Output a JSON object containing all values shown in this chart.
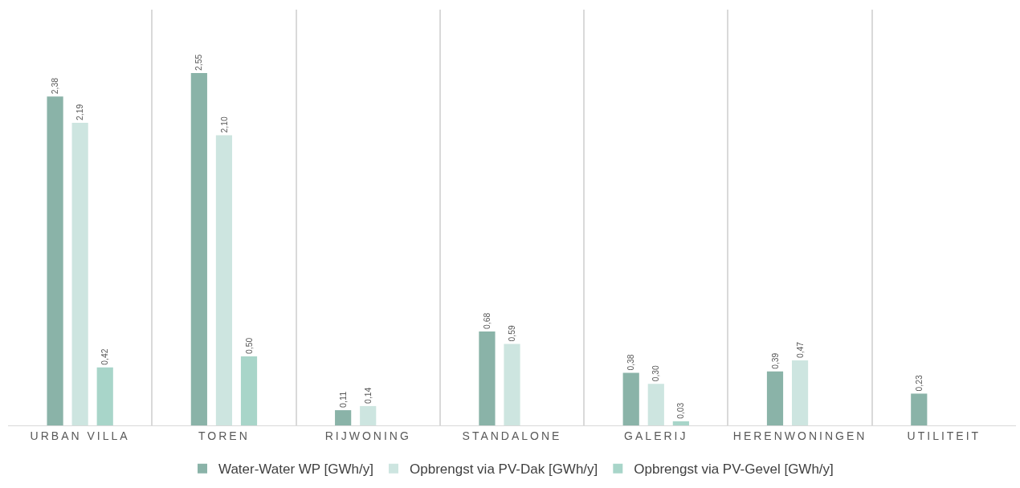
{
  "chart_data": {
    "type": "bar",
    "categories": [
      "URBAN VILLA",
      "TOREN",
      "RIJWONING",
      "STANDALONE",
      "GALERIJ",
      "HERENWONINGEN",
      "UTILITEIT"
    ],
    "series": [
      {
        "name": "Water-Water WP [GWh/y]",
        "color": "#8ab3a8",
        "values": [
          2.38,
          2.55,
          0.11,
          0.68,
          0.38,
          0.39,
          0.23
        ],
        "value_labels": [
          "2,38",
          "2,55",
          "0,11",
          "0,68",
          "0,38",
          "0,39",
          "0,23"
        ]
      },
      {
        "name": "Opbrengst via PV-Dak [GWh/y]",
        "color": "#cde5e0",
        "values": [
          2.19,
          2.1,
          0.14,
          0.59,
          0.3,
          0.47,
          null
        ],
        "value_labels": [
          "2,19",
          "2,10",
          "0,14",
          "0,59",
          "0,30",
          "0,47",
          null
        ]
      },
      {
        "name": "Opbrengst via PV-Gevel [GWh/y]",
        "color": "#a8d5c9",
        "values": [
          0.42,
          0.5,
          null,
          null,
          0.03,
          null,
          null
        ],
        "value_labels": [
          "0,42",
          "0,50",
          null,
          null,
          "0,03",
          null,
          null
        ]
      }
    ],
    "grid": "x",
    "legend": "bottom",
    "tick_labels": "x"
  }
}
